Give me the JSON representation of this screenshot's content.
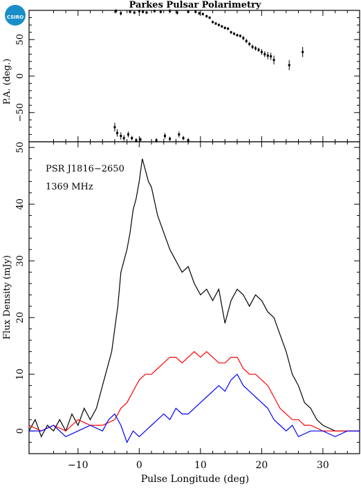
{
  "header": {
    "title": "Parkes Pulsar Polarimetry",
    "logo_text": "CSIRO"
  },
  "colors": {
    "total": "#000000",
    "linear": "#ff0000",
    "circular": "#0000ff",
    "logo": "#1a8ec9"
  },
  "chart_data": [
    {
      "type": "scatter",
      "ylabel": "P.A. (deg.)",
      "xlim": [
        -18,
        36
      ],
      "ylim": [
        -90,
        90
      ],
      "yticks": [
        -50,
        0,
        50
      ],
      "y_tick_labels": [
        "−50",
        "0",
        "50"
      ],
      "point_style": "dot with vertical error bar",
      "points": [
        {
          "x": -3.8,
          "y": 89,
          "err": 3
        },
        {
          "x": -3.0,
          "y": 86,
          "err": 3
        },
        {
          "x": -1.5,
          "y": 88,
          "err": 2
        },
        {
          "x": -0.8,
          "y": 87,
          "err": 2
        },
        {
          "x": 0.0,
          "y": 89,
          "err": 2
        },
        {
          "x": 0.6,
          "y": 88,
          "err": 2
        },
        {
          "x": 1.2,
          "y": 87,
          "err": 2
        },
        {
          "x": 2.5,
          "y": 89,
          "err": 2
        },
        {
          "x": 3.5,
          "y": 88,
          "err": 2
        },
        {
          "x": 5.0,
          "y": 89,
          "err": 3
        },
        {
          "x": 6.2,
          "y": 87,
          "err": 3
        },
        {
          "x": 8.0,
          "y": 88,
          "err": 2
        },
        {
          "x": 9.2,
          "y": 88,
          "err": 2
        },
        {
          "x": 9.8,
          "y": 86,
          "err": 2
        },
        {
          "x": 10.4,
          "y": 85,
          "err": 2
        },
        {
          "x": 11.0,
          "y": 82,
          "err": 2
        },
        {
          "x": 11.5,
          "y": 80,
          "err": 2
        },
        {
          "x": 12.0,
          "y": 74,
          "err": 2
        },
        {
          "x": 12.5,
          "y": 72,
          "err": 2
        },
        {
          "x": 13.0,
          "y": 70,
          "err": 2
        },
        {
          "x": 13.5,
          "y": 68,
          "err": 2
        },
        {
          "x": 14.0,
          "y": 66,
          "err": 2
        },
        {
          "x": 14.5,
          "y": 65,
          "err": 2
        },
        {
          "x": 15.0,
          "y": 60,
          "err": 2
        },
        {
          "x": 15.5,
          "y": 58,
          "err": 2
        },
        {
          "x": 16.0,
          "y": 56,
          "err": 2
        },
        {
          "x": 16.5,
          "y": 55,
          "err": 2
        },
        {
          "x": 17.0,
          "y": 52,
          "err": 3
        },
        {
          "x": 17.5,
          "y": 48,
          "err": 3
        },
        {
          "x": 18.0,
          "y": 44,
          "err": 3
        },
        {
          "x": 18.5,
          "y": 40,
          "err": 3
        },
        {
          "x": 19.0,
          "y": 38,
          "err": 3
        },
        {
          "x": 19.5,
          "y": 36,
          "err": 3
        },
        {
          "x": 20.0,
          "y": 33,
          "err": 4
        },
        {
          "x": 20.5,
          "y": 30,
          "err": 4
        },
        {
          "x": 21.0,
          "y": 28,
          "err": 5
        },
        {
          "x": 21.5,
          "y": 27,
          "err": 5
        },
        {
          "x": 22.0,
          "y": 22,
          "err": 6
        },
        {
          "x": 24.5,
          "y": 15,
          "err": 7
        },
        {
          "x": 26.7,
          "y": 33,
          "err": 7
        },
        {
          "x": -4.0,
          "y": -70,
          "err": 6
        },
        {
          "x": -3.6,
          "y": -78,
          "err": 5
        },
        {
          "x": -3.0,
          "y": -82,
          "err": 5
        },
        {
          "x": -2.5,
          "y": -85,
          "err": 4
        },
        {
          "x": -1.8,
          "y": -80,
          "err": 4
        },
        {
          "x": -1.2,
          "y": -85,
          "err": 3
        },
        {
          "x": -0.5,
          "y": -88,
          "err": 3
        },
        {
          "x": 0.2,
          "y": -87,
          "err": 3
        },
        {
          "x": 2.8,
          "y": -88,
          "err": 3
        },
        {
          "x": 4.2,
          "y": -82,
          "err": 4
        },
        {
          "x": 5.0,
          "y": -86,
          "err": 3
        },
        {
          "x": 6.5,
          "y": -80,
          "err": 4
        },
        {
          "x": 7.2,
          "y": -85,
          "err": 3
        },
        {
          "x": 8.0,
          "y": -88,
          "err": 3
        }
      ]
    },
    {
      "type": "line",
      "xlabel": "Pulse Longitude (deg)",
      "ylabel": "Flux Density (mJy)",
      "xlim": [
        -18,
        36
      ],
      "ylim": [
        -4,
        51
      ],
      "xticks": [
        -10,
        0,
        10,
        20,
        30
      ],
      "x_tick_labels": [
        "−10",
        "0",
        "10",
        "20",
        "30"
      ],
      "yticks": [
        0,
        10,
        20,
        30,
        40,
        50
      ],
      "y_tick_labels": [
        "0",
        "10",
        "20",
        "30",
        "40",
        "50"
      ],
      "annotations": [
        "PSR J1816−2650",
        "1369 MHz"
      ],
      "series": [
        {
          "color": "#000000",
          "x": [
            -18,
            -17,
            -16,
            -15,
            -14,
            -13,
            -12,
            -11,
            -10,
            -9,
            -8,
            -7,
            -6,
            -5,
            -4.5,
            -4,
            -3.5,
            -3,
            -2.5,
            -2,
            -1.5,
            -1,
            -0.5,
            0,
            0.5,
            1,
            1.5,
            2,
            3,
            4,
            5,
            6,
            7,
            8,
            9,
            10,
            11,
            12,
            13,
            14,
            15,
            16,
            17,
            18,
            19,
            20,
            21,
            22,
            23,
            24,
            25,
            26,
            27,
            28,
            29,
            30,
            32,
            34,
            36
          ],
          "values": [
            0,
            2,
            -1,
            1,
            0,
            2,
            0,
            3,
            1,
            4,
            2,
            4,
            8,
            12,
            14,
            18,
            22,
            28,
            30,
            32,
            35,
            39,
            41,
            44,
            48,
            46,
            44,
            43,
            38,
            35,
            32,
            30,
            28,
            29,
            26,
            24,
            25,
            23,
            25,
            19,
            23,
            25,
            24,
            22,
            24,
            23,
            21,
            20,
            17,
            14,
            10,
            8,
            5,
            4,
            2,
            1,
            0,
            0,
            0
          ]
        },
        {
          "color": "#ff0000",
          "x": [
            -18,
            -16,
            -14,
            -12,
            -10,
            -8,
            -6,
            -4,
            -3,
            -2,
            -1,
            0,
            1,
            2,
            3,
            4,
            5,
            6,
            7,
            8,
            9,
            10,
            11,
            12,
            13,
            14,
            15,
            16,
            17,
            18,
            19,
            20,
            21,
            22,
            23,
            24,
            25,
            26,
            27,
            28,
            30,
            32,
            34,
            36
          ],
          "values": [
            1,
            0,
            1,
            0,
            2,
            1,
            1,
            2,
            4,
            5,
            7,
            9,
            10,
            10,
            11,
            12,
            13,
            13,
            12,
            13,
            14,
            13,
            14,
            13,
            12,
            12,
            13,
            13,
            11,
            10,
            10,
            9,
            8,
            6,
            4,
            3,
            2,
            2,
            1,
            1,
            0,
            0,
            0,
            0
          ]
        },
        {
          "color": "#0000ff",
          "x": [
            -18,
            -16,
            -14,
            -12,
            -10,
            -8,
            -6,
            -5,
            -4,
            -3,
            -2,
            -1,
            0,
            1,
            2,
            3,
            4,
            5,
            6,
            7,
            8,
            9,
            10,
            11,
            12,
            13,
            14,
            15,
            16,
            17,
            18,
            19,
            20,
            21,
            22,
            23,
            24,
            25,
            26,
            28,
            30,
            32,
            34,
            36
          ],
          "values": [
            0,
            0,
            1,
            -1,
            0,
            1,
            0,
            2,
            3,
            1,
            -2,
            0,
            -1,
            0,
            1,
            2,
            3,
            2,
            4,
            3,
            3,
            4,
            5,
            6,
            7,
            8,
            7,
            9,
            10,
            8,
            7,
            6,
            5,
            4,
            2,
            1,
            0,
            1,
            -1,
            0,
            0,
            -1,
            0,
            0
          ]
        }
      ]
    }
  ]
}
